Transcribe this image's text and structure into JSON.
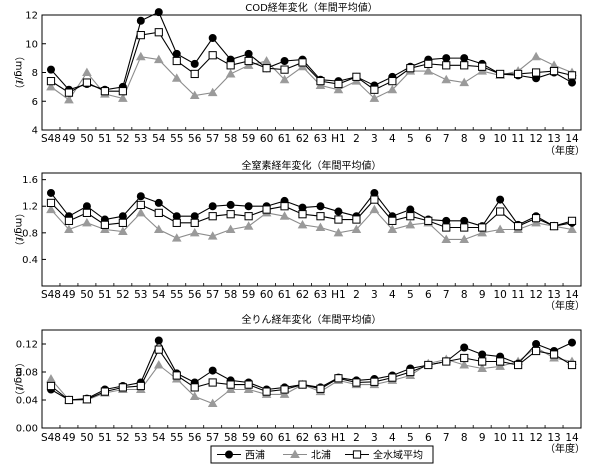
{
  "chart_data": [
    {
      "type": "line",
      "title": "COD経年変化（年間平均値）",
      "ylabel": "（mg/ℓ）",
      "xlabel": "（年度）",
      "ylim": [
        4,
        12
      ],
      "yticks": [
        4,
        6,
        8,
        10,
        12
      ],
      "grid": false,
      "categories": [
        "S48",
        "49",
        "50",
        "51",
        "52",
        "53",
        "54",
        "55",
        "56",
        "57",
        "58",
        "59",
        "60",
        "61",
        "62",
        "63",
        "H1",
        "2",
        "3",
        "4",
        "5",
        "6",
        "7",
        "8",
        "9",
        "10",
        "11",
        "12",
        "13",
        "14"
      ],
      "series": [
        {
          "name": "西浦",
          "values": [
            8.2,
            6.8,
            7.2,
            6.8,
            7.0,
            11.6,
            12.2,
            9.3,
            8.6,
            10.4,
            8.9,
            9.3,
            8.3,
            8.8,
            8.9,
            7.5,
            7.4,
            7.7,
            7.1,
            7.7,
            8.4,
            8.9,
            9.0,
            9.0,
            8.6,
            7.9,
            7.8,
            7.6,
            8.0,
            7.3
          ]
        },
        {
          "name": "北浦",
          "values": [
            7.0,
            6.1,
            8.0,
            6.5,
            6.2,
            9.1,
            8.9,
            7.6,
            6.4,
            6.6,
            7.9,
            8.5,
            8.8,
            7.5,
            8.4,
            7.1,
            6.8,
            7.4,
            6.2,
            6.8,
            8.1,
            8.1,
            7.5,
            7.3,
            8.1,
            7.8,
            8.1,
            9.1,
            8.5,
            8.0
          ]
        },
        {
          "name": "全水域平均",
          "values": [
            7.4,
            6.6,
            7.3,
            6.7,
            6.7,
            10.6,
            10.8,
            8.8,
            7.9,
            9.2,
            8.5,
            8.8,
            8.3,
            8.2,
            8.7,
            7.4,
            7.2,
            7.7,
            6.8,
            7.4,
            8.3,
            8.6,
            8.5,
            8.5,
            8.4,
            7.9,
            7.9,
            8.0,
            8.1,
            7.8
          ]
        }
      ]
    },
    {
      "type": "line",
      "title": "全窒素経年変化（年間平均値）",
      "ylabel": "（mg/ℓ）",
      "xlabel": "（年度）",
      "ylim": [
        0,
        1.7
      ],
      "yticks": [
        0.4,
        0.8,
        1.2,
        1.6
      ],
      "grid": false,
      "categories": [
        "S48",
        "49",
        "50",
        "51",
        "52",
        "53",
        "54",
        "55",
        "56",
        "57",
        "58",
        "59",
        "60",
        "61",
        "62",
        "63",
        "H1",
        "2",
        "3",
        "4",
        "5",
        "6",
        "7",
        "8",
        "9",
        "10",
        "11",
        "12",
        "13",
        "14"
      ],
      "series": [
        {
          "name": "西浦",
          "values": [
            1.4,
            1.05,
            1.2,
            1.0,
            1.05,
            1.35,
            1.25,
            1.05,
            1.05,
            1.2,
            1.22,
            1.2,
            1.2,
            1.28,
            1.18,
            1.2,
            1.12,
            1.05,
            1.4,
            1.05,
            1.15,
            1.0,
            0.98,
            0.98,
            0.9,
            1.3,
            0.92,
            1.05,
            0.9,
            0.95
          ]
        },
        {
          "name": "北浦",
          "values": [
            1.15,
            0.85,
            0.95,
            0.85,
            0.82,
            1.1,
            0.85,
            0.72,
            0.8,
            0.75,
            0.85,
            0.9,
            1.1,
            1.05,
            0.92,
            0.88,
            0.8,
            0.85,
            1.15,
            0.85,
            0.92,
            0.95,
            0.7,
            0.7,
            0.8,
            0.85,
            0.85,
            0.95,
            0.9,
            0.85
          ]
        },
        {
          "name": "全水域平均",
          "values": [
            1.25,
            0.98,
            1.1,
            0.92,
            0.95,
            1.22,
            1.1,
            0.95,
            0.95,
            1.05,
            1.08,
            1.05,
            1.15,
            1.2,
            1.08,
            1.05,
            1.0,
            1.0,
            1.3,
            0.98,
            1.05,
            0.98,
            0.88,
            0.88,
            0.88,
            1.12,
            0.9,
            1.02,
            0.9,
            0.98
          ]
        }
      ]
    },
    {
      "type": "line",
      "title": "全りん経年変化（年間平均値）",
      "ylabel": "（mg/ℓ）",
      "xlabel": "（年度）",
      "ylim": [
        0,
        0.14
      ],
      "yticks": [
        "0.00",
        "0.04",
        "0.08",
        "0.12"
      ],
      "grid": false,
      "categories": [
        "S48",
        "49",
        "50",
        "51",
        "52",
        "53",
        "54",
        "55",
        "56",
        "57",
        "58",
        "59",
        "60",
        "61",
        "62",
        "63",
        "H1",
        "2",
        "3",
        "4",
        "5",
        "6",
        "7",
        "8",
        "9",
        "10",
        "11",
        "12",
        "13",
        "14"
      ],
      "series": [
        {
          "name": "西浦",
          "values": [
            0.055,
            0.04,
            0.042,
            0.055,
            0.06,
            0.065,
            0.125,
            0.078,
            0.065,
            0.082,
            0.068,
            0.065,
            0.055,
            0.058,
            0.062,
            0.058,
            0.072,
            0.068,
            0.07,
            0.075,
            0.085,
            0.09,
            0.095,
            0.115,
            0.105,
            0.102,
            0.092,
            0.12,
            0.11,
            0.122
          ]
        },
        {
          "name": "北浦",
          "values": [
            0.07,
            0.04,
            0.04,
            0.05,
            0.055,
            0.055,
            0.09,
            0.07,
            0.045,
            0.035,
            0.055,
            0.055,
            0.048,
            0.048,
            0.062,
            0.052,
            0.068,
            0.062,
            0.062,
            0.068,
            0.075,
            0.092,
            0.098,
            0.09,
            0.085,
            0.088,
            0.095,
            0.115,
            0.1,
            0.095
          ]
        },
        {
          "name": "全水域平均",
          "values": [
            0.06,
            0.04,
            0.041,
            0.052,
            0.058,
            0.06,
            0.112,
            0.075,
            0.058,
            0.065,
            0.062,
            0.062,
            0.052,
            0.055,
            0.062,
            0.056,
            0.071,
            0.065,
            0.066,
            0.072,
            0.08,
            0.09,
            0.095,
            0.1,
            0.095,
            0.095,
            0.09,
            0.11,
            0.105,
            0.09
          ]
        }
      ]
    }
  ],
  "legend": {
    "items": [
      {
        "label": "西浦",
        "marker": "filled-circle"
      },
      {
        "label": "北浦",
        "marker": "triangle"
      },
      {
        "label": "全水域平均",
        "marker": "open-square"
      }
    ]
  },
  "colors": {
    "west": "#000000",
    "north": "#9a9a9a",
    "all": "#000000",
    "north_line": "#8c8c8c"
  }
}
